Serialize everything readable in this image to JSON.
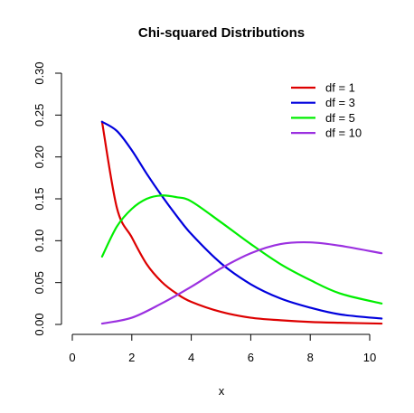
{
  "chart_data": {
    "type": "line",
    "title": "Chi-squared Distributions",
    "xlabel": "x",
    "ylabel": "",
    "xlim": [
      0,
      10.4
    ],
    "ylim": [
      0,
      0.3
    ],
    "x_ticks": [
      0,
      2,
      4,
      6,
      8,
      10
    ],
    "y_ticks": [
      0.0,
      0.05,
      0.1,
      0.15,
      0.2,
      0.25,
      0.3
    ],
    "y_tick_labels": [
      "0.00",
      "0.05",
      "0.10",
      "0.15",
      "0.20",
      "0.25",
      "0.30"
    ],
    "legend_position": "top-right",
    "series": [
      {
        "name": "df = 1",
        "color": "#dd0000",
        "x": [
          1.0,
          1.5,
          2.0,
          2.5,
          3.0,
          3.5,
          4.0,
          5.0,
          6.0,
          7.0,
          8.0,
          9.0,
          10.4
        ],
        "values": [
          0.242,
          0.139,
          0.104,
          0.072,
          0.051,
          0.037,
          0.027,
          0.015,
          0.008,
          0.005,
          0.003,
          0.002,
          0.001
        ]
      },
      {
        "name": "df = 3",
        "color": "#0000dd",
        "x": [
          1.0,
          1.5,
          2.0,
          2.5,
          3.0,
          3.5,
          4.0,
          5.0,
          6.0,
          7.0,
          8.0,
          9.0,
          10.4
        ],
        "values": [
          0.242,
          0.231,
          0.208,
          0.18,
          0.154,
          0.13,
          0.108,
          0.073,
          0.048,
          0.031,
          0.02,
          0.012,
          0.007
        ]
      },
      {
        "name": "df = 5",
        "color": "#00ee00",
        "x": [
          1.0,
          1.5,
          2.0,
          2.5,
          3.0,
          3.5,
          4.0,
          5.0,
          6.0,
          7.0,
          8.0,
          9.0,
          10.4
        ],
        "values": [
          0.081,
          0.117,
          0.138,
          0.15,
          0.154,
          0.152,
          0.147,
          0.122,
          0.096,
          0.072,
          0.053,
          0.037,
          0.025
        ]
      },
      {
        "name": "df = 10",
        "color": "#9b30e0",
        "x": [
          1.0,
          2.0,
          3.0,
          4.0,
          5.0,
          6.0,
          7.0,
          8.0,
          9.0,
          10.4
        ],
        "values": [
          0.001,
          0.008,
          0.025,
          0.045,
          0.067,
          0.085,
          0.096,
          0.098,
          0.094,
          0.085
        ]
      }
    ]
  }
}
